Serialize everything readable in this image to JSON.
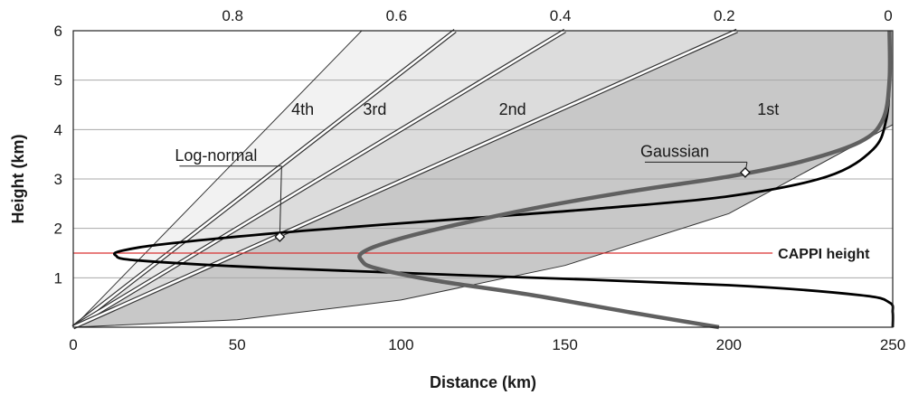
{
  "chart_data": {
    "type": "line",
    "title": "",
    "xlabel": "Distance (km)",
    "ylabel": "Height (km)",
    "xlim": [
      0,
      250
    ],
    "ylim": [
      0,
      6
    ],
    "top_xlim": [
      1,
      0
    ],
    "x_ticks": [
      "0",
      "50",
      "100",
      "150",
      "200",
      "250"
    ],
    "y_ticks": [
      "1",
      "2",
      "3",
      "4",
      "5",
      "6"
    ],
    "top_ticks": [
      "0.8",
      "0.6",
      "0.4",
      "0.2",
      "0"
    ],
    "grid": "horizontal",
    "colors": {
      "sector_4th": "#f2f2f2",
      "sector_3rd": "#e9e9e9",
      "sector_2nd": "#dcdcdc",
      "sector_1st": "#c8c8c8",
      "log_normal_curve": "#000000",
      "gaussian_curve": "#606060",
      "cappi_line": "#d93030",
      "beam_lines": "#333333"
    },
    "beam_sectors": [
      {
        "label": "4th",
        "upper_top_x": 0.648
      },
      {
        "label": "3rd",
        "upper_top_x": 0.534
      },
      {
        "label": "2nd",
        "upper_top_x": 0.4
      },
      {
        "label": "1st",
        "upper_top_x": 0.19
      }
    ],
    "beam_lower_edge": {
      "x": [
        0,
        50,
        100,
        150,
        200,
        250
      ],
      "y": [
        0,
        0.15,
        0.55,
        1.25,
        2.3,
        4.1
      ]
    },
    "series": [
      {
        "name": "Log-normal",
        "x": [
          249,
          249,
          248,
          244,
          230,
          200,
          160,
          120,
          70,
          30,
          15,
          13,
          20,
          60,
          120,
          200,
          240,
          249,
          250,
          250
        ],
        "y": [
          6.0,
          5.0,
          4.2,
          3.6,
          3.05,
          2.65,
          2.4,
          2.2,
          1.95,
          1.7,
          1.55,
          1.45,
          1.35,
          1.2,
          1.05,
          0.85,
          0.65,
          0.5,
          0.3,
          0.0
        ]
      },
      {
        "name": "Gaussian",
        "x": [
          249,
          249,
          247,
          240,
          222,
          200,
          170,
          140,
          112,
          95,
          88,
          88,
          92,
          110,
          140,
          170,
          197
        ],
        "y": [
          6.0,
          5.0,
          4.2,
          3.75,
          3.35,
          3.05,
          2.75,
          2.4,
          2.0,
          1.7,
          1.5,
          1.35,
          1.2,
          0.95,
          0.65,
          0.3,
          0.0
        ]
      }
    ],
    "cappi": {
      "y": 1.5,
      "label": "CAPPI height",
      "label_x": 215
    },
    "annotations": [
      {
        "text": "Log-normal",
        "x": 31,
        "y": 3.37,
        "point_x": 63,
        "point_y": 1.83
      },
      {
        "text": "Gaussian",
        "x": 173,
        "y": 3.45,
        "point_x": 205,
        "point_y": 3.13
      }
    ],
    "sector_labels": [
      {
        "text": "4th",
        "x": 70,
        "y": 4.3
      },
      {
        "text": "3rd",
        "x": 92,
        "y": 4.3
      },
      {
        "text": "2nd",
        "x": 134,
        "y": 4.3
      },
      {
        "text": "1st",
        "x": 212,
        "y": 4.3
      }
    ]
  }
}
